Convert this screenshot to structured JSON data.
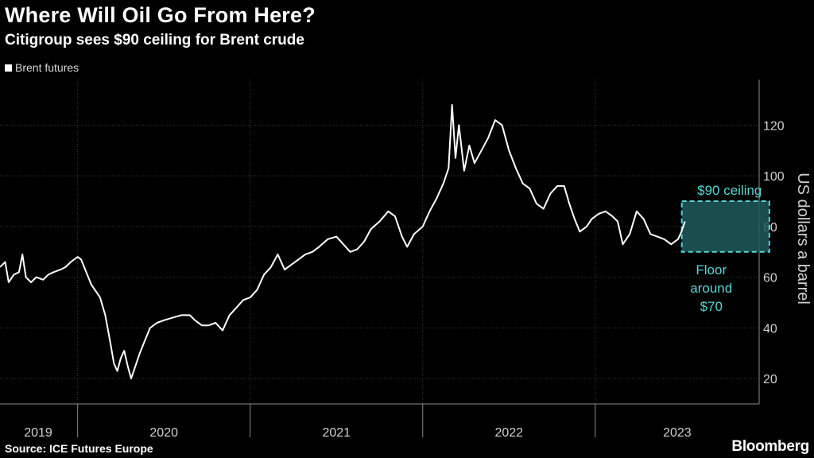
{
  "chart_data": {
    "type": "line",
    "title": "Where Will Oil Go From Here?",
    "subtitle": "Citigroup sees $90 ceiling for Brent crude",
    "legend": [
      {
        "name": "Brent futures",
        "color": "#ffffff"
      }
    ],
    "ylabel": "US dollars a barrel",
    "xlabel": "",
    "ylim": [
      10,
      138
    ],
    "yticks": [
      20,
      40,
      60,
      80,
      100,
      120
    ],
    "year_labels": [
      "2019",
      "2020",
      "2021",
      "2022",
      "2023"
    ],
    "year_boundaries": [
      2019.0,
      2020.0,
      2021.0,
      2022.0,
      2023.0,
      2024.0
    ],
    "xlim": [
      2019.55,
      2023.95
    ],
    "gridlines": true,
    "series": [
      {
        "name": "Brent futures",
        "points": [
          [
            2019.55,
            64
          ],
          [
            2019.58,
            66
          ],
          [
            2019.6,
            58
          ],
          [
            2019.63,
            61
          ],
          [
            2019.66,
            62
          ],
          [
            2019.68,
            69
          ],
          [
            2019.7,
            60
          ],
          [
            2019.73,
            58
          ],
          [
            2019.76,
            60
          ],
          [
            2019.8,
            59
          ],
          [
            2019.83,
            61
          ],
          [
            2019.86,
            62
          ],
          [
            2019.9,
            63
          ],
          [
            2019.93,
            64
          ],
          [
            2019.96,
            66
          ],
          [
            2020.0,
            68
          ],
          [
            2020.02,
            67
          ],
          [
            2020.05,
            62
          ],
          [
            2020.08,
            57
          ],
          [
            2020.1,
            55
          ],
          [
            2020.13,
            52
          ],
          [
            2020.16,
            45
          ],
          [
            2020.19,
            34
          ],
          [
            2020.21,
            26
          ],
          [
            2020.23,
            23
          ],
          [
            2020.25,
            28
          ],
          [
            2020.27,
            31
          ],
          [
            2020.29,
            25
          ],
          [
            2020.31,
            20
          ],
          [
            2020.33,
            24
          ],
          [
            2020.36,
            30
          ],
          [
            2020.39,
            35
          ],
          [
            2020.42,
            40
          ],
          [
            2020.46,
            42
          ],
          [
            2020.5,
            43
          ],
          [
            2020.55,
            44
          ],
          [
            2020.6,
            45
          ],
          [
            2020.65,
            45
          ],
          [
            2020.68,
            43
          ],
          [
            2020.72,
            41
          ],
          [
            2020.76,
            41
          ],
          [
            2020.8,
            42
          ],
          [
            2020.84,
            39
          ],
          [
            2020.88,
            45
          ],
          [
            2020.92,
            48
          ],
          [
            2020.96,
            51
          ],
          [
            2021.0,
            52
          ],
          [
            2021.04,
            55
          ],
          [
            2021.08,
            61
          ],
          [
            2021.12,
            64
          ],
          [
            2021.16,
            69
          ],
          [
            2021.2,
            63
          ],
          [
            2021.24,
            65
          ],
          [
            2021.28,
            67
          ],
          [
            2021.32,
            69
          ],
          [
            2021.36,
            70
          ],
          [
            2021.4,
            72
          ],
          [
            2021.45,
            75
          ],
          [
            2021.5,
            76
          ],
          [
            2021.54,
            73
          ],
          [
            2021.58,
            70
          ],
          [
            2021.62,
            71
          ],
          [
            2021.66,
            74
          ],
          [
            2021.7,
            79
          ],
          [
            2021.75,
            82
          ],
          [
            2021.8,
            86
          ],
          [
            2021.84,
            84
          ],
          [
            2021.88,
            76
          ],
          [
            2021.91,
            72
          ],
          [
            2021.95,
            77
          ],
          [
            2022.0,
            80
          ],
          [
            2022.04,
            86
          ],
          [
            2022.08,
            91
          ],
          [
            2022.12,
            97
          ],
          [
            2022.15,
            103
          ],
          [
            2022.17,
            128
          ],
          [
            2022.19,
            107
          ],
          [
            2022.21,
            120
          ],
          [
            2022.24,
            102
          ],
          [
            2022.27,
            112
          ],
          [
            2022.3,
            105
          ],
          [
            2022.34,
            110
          ],
          [
            2022.38,
            115
          ],
          [
            2022.42,
            122
          ],
          [
            2022.46,
            120
          ],
          [
            2022.5,
            110
          ],
          [
            2022.54,
            103
          ],
          [
            2022.58,
            97
          ],
          [
            2022.62,
            95
          ],
          [
            2022.66,
            89
          ],
          [
            2022.7,
            87
          ],
          [
            2022.74,
            93
          ],
          [
            2022.78,
            96
          ],
          [
            2022.82,
            96
          ],
          [
            2022.85,
            89
          ],
          [
            2022.88,
            83
          ],
          [
            2022.91,
            78
          ],
          [
            2022.95,
            80
          ],
          [
            2022.98,
            83
          ],
          [
            2023.02,
            85
          ],
          [
            2023.06,
            86
          ],
          [
            2023.1,
            84
          ],
          [
            2023.13,
            82
          ],
          [
            2023.16,
            73
          ],
          [
            2023.2,
            77
          ],
          [
            2023.24,
            86
          ],
          [
            2023.28,
            83
          ],
          [
            2023.32,
            77
          ],
          [
            2023.36,
            76
          ],
          [
            2023.4,
            75
          ],
          [
            2023.44,
            73
          ],
          [
            2023.48,
            75
          ],
          [
            2023.5,
            78
          ],
          [
            2023.52,
            82
          ]
        ]
      }
    ],
    "annotation_box": {
      "y_low": 70,
      "y_high": 90,
      "x_start": 2023.52,
      "x_end": 2024.0,
      "color": "#55d6d6"
    },
    "annotations": {
      "ceiling": "$90 ceiling",
      "floor_line1": "Floor",
      "floor_line2": "around",
      "floor_line3": "$70"
    }
  },
  "source": "Source: ICE Futures Europe",
  "brand": "Bloomberg"
}
